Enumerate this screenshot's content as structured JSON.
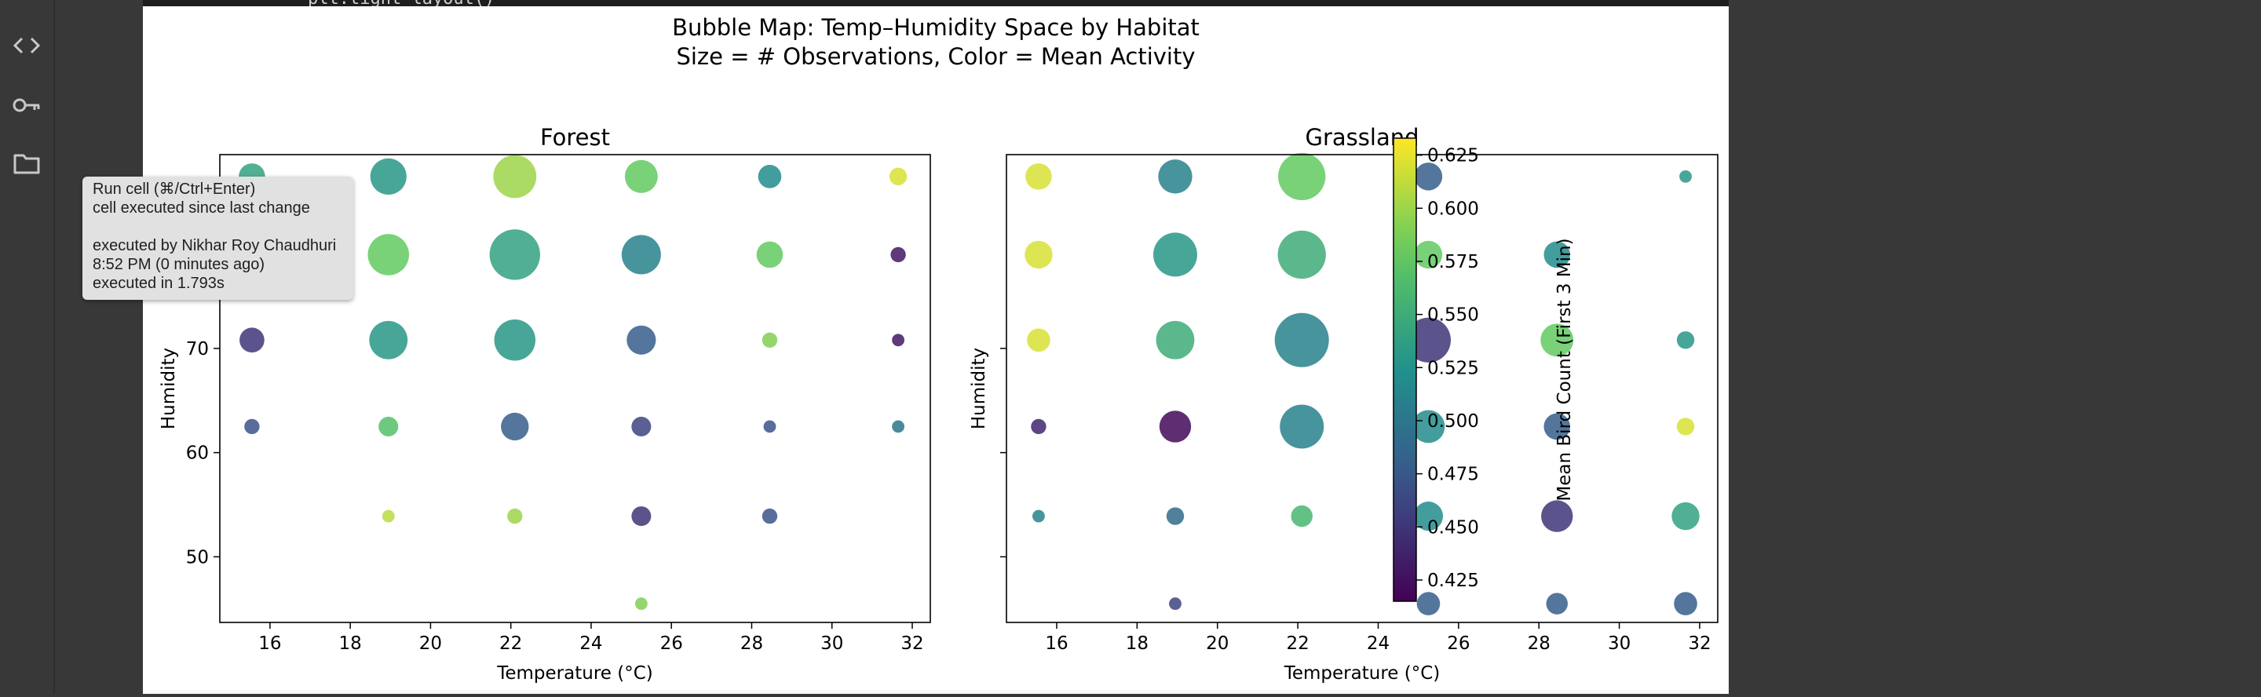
{
  "notebook": {
    "code_fragment": "plt.tight_layout()",
    "tooltip": {
      "line1": "Run cell (⌘/Ctrl+Enter)",
      "line2": "cell executed since last change",
      "line3": "executed by Nikhar Roy Chaudhuri",
      "line4": "8:52 PM (0 minutes ago)",
      "line5": "executed in 1.793s"
    },
    "rail_icons": [
      "code-icon",
      "key-icon",
      "folder-icon"
    ]
  },
  "chart_data": {
    "type": "scatter",
    "title": "Bubble Map: Temp–Humidity Space by Habitat",
    "subtitle": "Size = # Observations, Color = Mean Activity",
    "xlabel": "Temperature (°C)",
    "ylabel": "Humidity",
    "xlim": [
      14.75,
      32.45
    ],
    "ylim": [
      43.7,
      88.6
    ],
    "xticks": [
      16,
      18,
      20,
      22,
      24,
      26,
      28,
      30,
      32
    ],
    "yticks": [
      50,
      60,
      70
    ],
    "x_values": [
      15.55,
      18.95,
      22.1,
      25.25,
      28.45,
      31.65
    ],
    "y_values": [
      45.5,
      53.9,
      62.5,
      70.8,
      79.0,
      86.5
    ],
    "colorbar": {
      "label": "Mean Bird Count (First 3 Min)",
      "range": [
        0.415,
        0.633
      ],
      "ticks": [
        0.425,
        0.45,
        0.475,
        0.5,
        0.525,
        0.55,
        0.575,
        0.6,
        0.625
      ],
      "colormap": "viridis"
    },
    "panels": [
      {
        "title": "Forest",
        "points": [
          {
            "x": 15.55,
            "y": 86.5,
            "n": 9,
            "c": 0.54
          },
          {
            "x": 18.95,
            "y": 86.5,
            "n": 17,
            "c": 0.53
          },
          {
            "x": 22.1,
            "y": 86.5,
            "n": 24,
            "c": 0.6
          },
          {
            "x": 25.25,
            "y": 86.5,
            "n": 14,
            "c": 0.58
          },
          {
            "x": 28.45,
            "y": 86.5,
            "n": 7,
            "c": 0.52
          },
          {
            "x": 31.65,
            "y": 86.5,
            "n": 4,
            "c": 0.62
          },
          {
            "x": 15.55,
            "y": 79.0,
            "n": 10,
            "c": 0.55
          },
          {
            "x": 18.95,
            "y": 79.0,
            "n": 22,
            "c": 0.58
          },
          {
            "x": 22.1,
            "y": 79.0,
            "n": 33,
            "c": 0.54
          },
          {
            "x": 25.25,
            "y": 79.0,
            "n": 20,
            "c": 0.51
          },
          {
            "x": 28.45,
            "y": 79.0,
            "n": 9,
            "c": 0.58
          },
          {
            "x": 31.65,
            "y": 79.0,
            "n": 3,
            "c": 0.43
          },
          {
            "x": 15.55,
            "y": 70.8,
            "n": 8,
            "c": 0.45
          },
          {
            "x": 18.95,
            "y": 70.8,
            "n": 19,
            "c": 0.53
          },
          {
            "x": 22.1,
            "y": 70.8,
            "n": 22,
            "c": 0.53
          },
          {
            "x": 25.25,
            "y": 70.8,
            "n": 11,
            "c": 0.48
          },
          {
            "x": 28.45,
            "y": 70.8,
            "n": 3,
            "c": 0.59
          },
          {
            "x": 31.65,
            "y": 70.8,
            "n": 2,
            "c": 0.43
          },
          {
            "x": 15.55,
            "y": 62.5,
            "n": 3,
            "c": 0.47
          },
          {
            "x": 18.95,
            "y": 62.5,
            "n": 5,
            "c": 0.57
          },
          {
            "x": 22.1,
            "y": 62.5,
            "n": 10,
            "c": 0.48
          },
          {
            "x": 25.25,
            "y": 62.5,
            "n": 5,
            "c": 0.46
          },
          {
            "x": 28.45,
            "y": 62.5,
            "n": 2,
            "c": 0.47
          },
          {
            "x": 31.65,
            "y": 62.5,
            "n": 2,
            "c": 0.5
          },
          {
            "x": 18.95,
            "y": 53.9,
            "n": 2,
            "c": 0.61
          },
          {
            "x": 22.1,
            "y": 53.9,
            "n": 3,
            "c": 0.6
          },
          {
            "x": 25.25,
            "y": 53.9,
            "n": 5,
            "c": 0.45
          },
          {
            "x": 28.45,
            "y": 53.9,
            "n": 3,
            "c": 0.47
          },
          {
            "x": 25.25,
            "y": 45.5,
            "n": 2,
            "c": 0.59
          }
        ]
      },
      {
        "title": "Grassland",
        "points": [
          {
            "x": 15.55,
            "y": 86.5,
            "n": 9,
            "c": 0.62
          },
          {
            "x": 18.95,
            "y": 86.5,
            "n": 15,
            "c": 0.51
          },
          {
            "x": 22.1,
            "y": 86.5,
            "n": 29,
            "c": 0.58
          },
          {
            "x": 25.25,
            "y": 86.5,
            "n": 10,
            "c": 0.48
          },
          {
            "x": 31.65,
            "y": 86.5,
            "n": 2,
            "c": 0.53
          },
          {
            "x": 15.55,
            "y": 79.0,
            "n": 10,
            "c": 0.62
          },
          {
            "x": 18.95,
            "y": 79.0,
            "n": 25,
            "c": 0.53
          },
          {
            "x": 22.1,
            "y": 79.0,
            "n": 30,
            "c": 0.55
          },
          {
            "x": 25.25,
            "y": 79.0,
            "n": 10,
            "c": 0.58
          },
          {
            "x": 28.45,
            "y": 79.0,
            "n": 9,
            "c": 0.52
          },
          {
            "x": 15.55,
            "y": 70.8,
            "n": 7,
            "c": 0.62
          },
          {
            "x": 18.95,
            "y": 70.8,
            "n": 19,
            "c": 0.55
          },
          {
            "x": 22.1,
            "y": 70.8,
            "n": 38,
            "c": 0.51
          },
          {
            "x": 25.25,
            "y": 70.8,
            "n": 26,
            "c": 0.45
          },
          {
            "x": 28.45,
            "y": 70.8,
            "n": 14,
            "c": 0.58
          },
          {
            "x": 31.65,
            "y": 70.8,
            "n": 4,
            "c": 0.53
          },
          {
            "x": 15.55,
            "y": 62.5,
            "n": 3,
            "c": 0.44
          },
          {
            "x": 18.95,
            "y": 62.5,
            "n": 13,
            "c": 0.42
          },
          {
            "x": 22.1,
            "y": 62.5,
            "n": 25,
            "c": 0.51
          },
          {
            "x": 25.25,
            "y": 62.5,
            "n": 14,
            "c": 0.52
          },
          {
            "x": 28.45,
            "y": 62.5,
            "n": 9,
            "c": 0.48
          },
          {
            "x": 31.65,
            "y": 62.5,
            "n": 4,
            "c": 0.62
          },
          {
            "x": 15.55,
            "y": 53.9,
            "n": 2,
            "c": 0.51
          },
          {
            "x": 18.95,
            "y": 53.9,
            "n": 4,
            "c": 0.49
          },
          {
            "x": 22.1,
            "y": 53.9,
            "n": 6,
            "c": 0.56
          },
          {
            "x": 25.25,
            "y": 53.9,
            "n": 11,
            "c": 0.52
          },
          {
            "x": 28.45,
            "y": 53.9,
            "n": 13,
            "c": 0.45
          },
          {
            "x": 31.65,
            "y": 53.9,
            "n": 10,
            "c": 0.54
          },
          {
            "x": 18.95,
            "y": 45.5,
            "n": 2,
            "c": 0.46
          },
          {
            "x": 25.25,
            "y": 45.5,
            "n": 7,
            "c": 0.48
          },
          {
            "x": 28.45,
            "y": 45.5,
            "n": 6,
            "c": 0.48
          },
          {
            "x": 31.65,
            "y": 45.5,
            "n": 7,
            "c": 0.48
          }
        ]
      }
    ]
  }
}
